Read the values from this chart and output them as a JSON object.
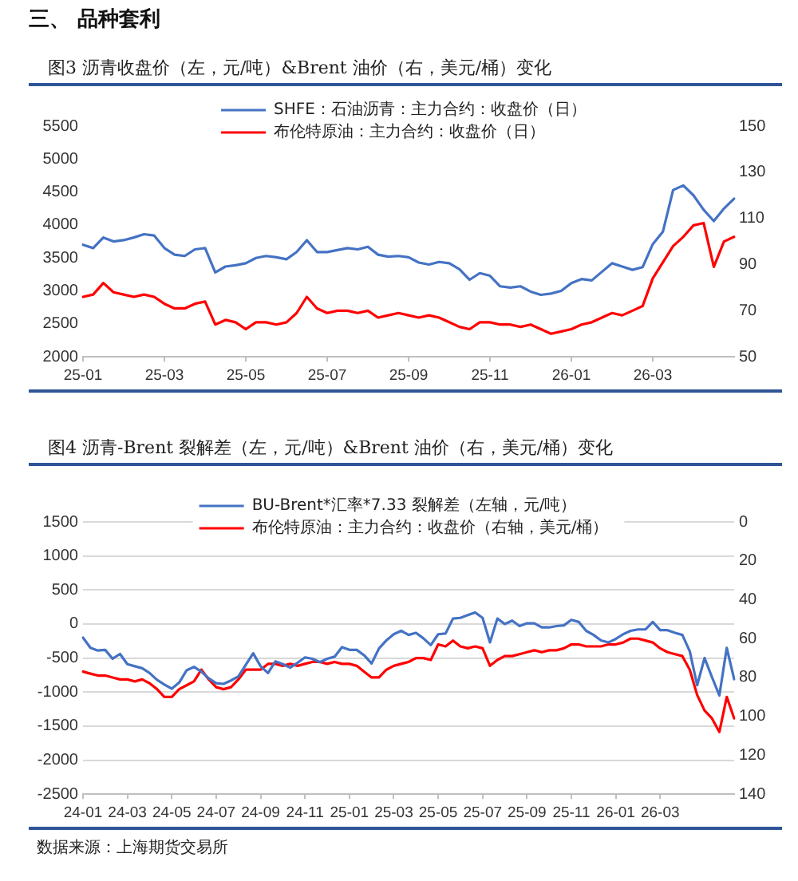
{
  "chart_data": [
    {
      "type": "line",
      "title": "图3 沥青收盘价（左，元/吨）&Brent 油价（右，美元/桶）变化",
      "annotations": [
        "三、 品种套利"
      ],
      "categories": [
        "25-01",
        null,
        null,
        null,
        null,
        null,
        null,
        null,
        "25-03",
        null,
        null,
        null,
        null,
        null,
        null,
        null,
        "25-05",
        null,
        null,
        null,
        null,
        null,
        null,
        null,
        "25-07",
        null,
        null,
        null,
        null,
        null,
        null,
        null,
        "25-09",
        null,
        null,
        null,
        null,
        null,
        null,
        null,
        "25-11",
        null,
        null,
        null,
        null,
        null,
        null,
        null,
        "26-01",
        null,
        null,
        null,
        null,
        null,
        null,
        null,
        "26-03",
        null,
        null,
        null,
        null,
        null,
        null,
        null,
        null
      ],
      "ylim": [
        2000,
        5500
      ],
      "yticks": [
        2000,
        2500,
        3000,
        3500,
        4000,
        4500,
        5000,
        5500
      ],
      "y2lim": [
        50,
        150
      ],
      "y2ticks": [
        50,
        70,
        90,
        110,
        130,
        150
      ],
      "legend": "top",
      "series": [
        {
          "name": "SHFE：石油沥青：主力合约：收盘价（日）",
          "color": "#4472c4",
          "values": [
            3700,
            3650,
            3810,
            3750,
            3770,
            3810,
            3860,
            3840,
            3650,
            3550,
            3530,
            3630,
            3650,
            3280,
            3370,
            3390,
            3420,
            3500,
            3530,
            3510,
            3480,
            3590,
            3770,
            3590,
            3590,
            3620,
            3650,
            3630,
            3670,
            3550,
            3520,
            3530,
            3510,
            3430,
            3400,
            3440,
            3420,
            3330,
            3170,
            3270,
            3230,
            3070,
            3050,
            3070,
            2990,
            2940,
            2960,
            3000,
            3120,
            3180,
            3160,
            3290,
            3420,
            3370,
            3320,
            3360,
            3710,
            3900,
            4530,
            4600,
            4450,
            4230,
            4060,
            4250,
            4400
          ]
        },
        {
          "name": "布伦特原油：主力合约：收盘价（日）",
          "color": "#ff0000",
          "axis": "y2",
          "values": [
            76,
            77,
            82,
            78,
            77,
            76,
            77,
            76,
            73,
            71,
            71,
            73,
            74,
            64,
            66,
            65,
            62,
            65,
            65,
            64,
            65,
            69,
            76,
            71,
            69,
            70,
            70,
            69,
            70,
            67,
            68,
            69,
            68,
            67,
            68,
            67,
            65,
            63,
            62,
            65,
            65,
            64,
            64,
            63,
            64,
            62,
            60,
            61,
            62,
            64,
            65,
            67,
            69,
            68,
            70,
            72,
            84,
            91,
            98,
            102,
            107,
            108,
            89,
            100,
            102
          ]
        }
      ]
    },
    {
      "type": "line",
      "title": "图4 沥青-Brent 裂解差（左，元/吨）&Brent 油价（右，美元/桶）变化",
      "annotations": [
        "数据来源：上海期货交易所"
      ],
      "categories": [
        "24-01",
        null,
        null,
        null,
        null,
        null,
        "24-03",
        null,
        null,
        null,
        null,
        null,
        "24-05",
        null,
        null,
        null,
        null,
        null,
        "24-07",
        null,
        null,
        null,
        null,
        null,
        "24-09",
        null,
        null,
        null,
        null,
        null,
        "24-11",
        null,
        null,
        null,
        null,
        null,
        "25-01",
        null,
        null,
        null,
        null,
        null,
        "25-03",
        null,
        null,
        null,
        null,
        null,
        "25-05",
        null,
        null,
        null,
        null,
        null,
        "25-07",
        null,
        null,
        null,
        null,
        null,
        "25-09",
        null,
        null,
        null,
        null,
        null,
        "25-11",
        null,
        null,
        null,
        null,
        null,
        "26-01",
        null,
        null,
        null,
        null,
        null,
        "26-03",
        null,
        null,
        null,
        null,
        null,
        null,
        null,
        null,
        null,
        null
      ],
      "ylim": [
        -2500,
        1500
      ],
      "yticks": [
        -2500,
        -2000,
        -1500,
        -1000,
        -500,
        0,
        500,
        1000,
        1500
      ],
      "y2lim": [
        140,
        0
      ],
      "y2ticks": [
        0,
        20,
        40,
        60,
        80,
        100,
        120,
        140
      ],
      "grid": "y",
      "legend": "top",
      "series": [
        {
          "name": "BU-Brent*汇率*7.33 裂解差（左轴，元/吨）",
          "color": "#4472c4",
          "values": [
            -200,
            -350,
            -390,
            -380,
            -510,
            -440,
            -590,
            -620,
            -650,
            -720,
            -820,
            -890,
            -950,
            -860,
            -680,
            -630,
            -700,
            -800,
            -870,
            -880,
            -830,
            -770,
            -600,
            -430,
            -620,
            -720,
            -550,
            -590,
            -640,
            -570,
            -490,
            -510,
            -560,
            -510,
            -480,
            -340,
            -380,
            -380,
            -460,
            -580,
            -360,
            -240,
            -150,
            -100,
            -160,
            -130,
            -210,
            -310,
            -150,
            -140,
            80,
            90,
            130,
            170,
            90,
            -270,
            80,
            0,
            50,
            -30,
            10,
            10,
            -50,
            -50,
            -30,
            -20,
            60,
            30,
            -100,
            -160,
            -240,
            -270,
            -220,
            -150,
            -100,
            -80,
            -80,
            30,
            -90,
            -90,
            -130,
            -160,
            -400,
            -900,
            -500,
            -780,
            -1050,
            -350,
            -810
          ]
        },
        {
          "name": "布伦特原油：主力合约：收盘价（右轴，美元/桶）",
          "color": "#ff0000",
          "axis": "y2",
          "values": [
            77,
            78,
            79,
            79,
            80,
            81,
            81,
            82,
            81,
            83,
            86,
            90,
            90,
            86,
            84,
            82,
            76,
            81,
            85,
            86,
            85,
            81,
            76,
            76,
            76,
            73,
            73,
            74,
            73,
            74,
            73,
            72,
            72,
            73,
            72,
            73,
            73,
            74,
            77,
            80,
            80,
            76,
            74,
            73,
            72,
            70,
            70,
            71,
            63,
            64,
            61,
            64,
            65,
            64,
            65,
            74,
            71,
            69,
            69,
            68,
            67,
            66,
            67,
            66,
            66,
            65,
            63,
            63,
            64,
            64,
            64,
            63,
            63,
            62,
            60,
            60,
            61,
            62,
            65,
            67,
            68,
            69,
            76,
            89,
            97,
            101,
            108,
            90,
            101
          ]
        }
      ]
    }
  ]
}
